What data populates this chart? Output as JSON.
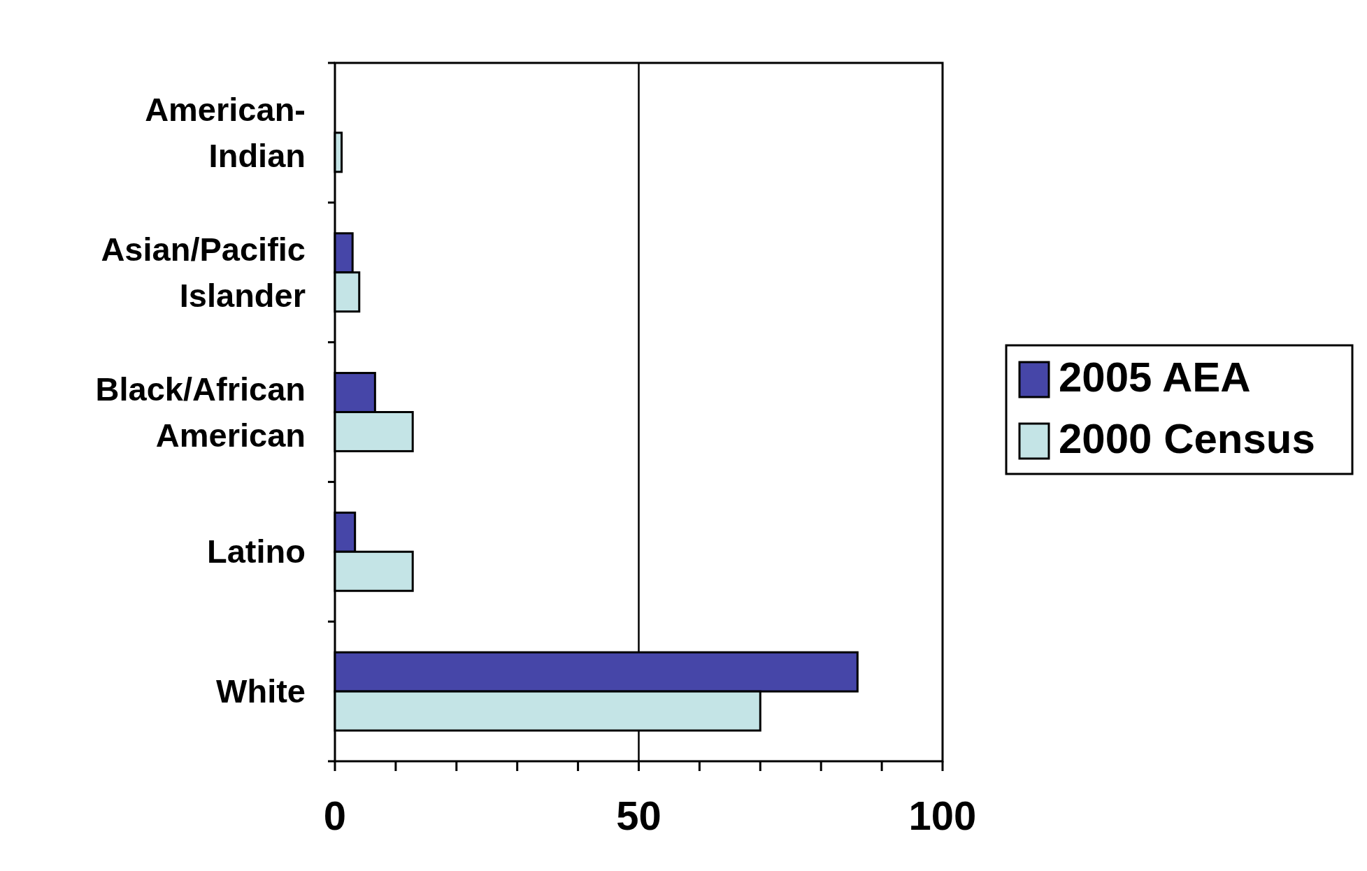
{
  "chart_data": {
    "type": "bar",
    "orientation": "horizontal",
    "categories": [
      "American-Indian",
      "Asian/Pacific Islander",
      "Black/African American",
      "Latino",
      "White"
    ],
    "series": [
      {
        "name": "2005 AEA",
        "color": "#4646a8",
        "values": [
          0,
          2.9,
          6.6,
          3.3,
          86
        ]
      },
      {
        "name": "2000 Census",
        "color": "#c4e4e6",
        "values": [
          1.1,
          4,
          12.8,
          12.8,
          70
        ]
      }
    ],
    "xlim": [
      0,
      100
    ],
    "xticks": [
      0,
      {
        "value": 10,
        "label": null
      },
      {
        "value": 20,
        "label": null
      },
      {
        "value": 30,
        "label": null
      },
      {
        "value": 40,
        "label": null
      },
      50,
      {
        "value": 60,
        "label": null
      },
      {
        "value": 70,
        "label": null
      },
      {
        "value": 80,
        "label": null
      },
      {
        "value": 90,
        "label": null
      },
      100
    ],
    "grid": "x",
    "legend": "right"
  }
}
